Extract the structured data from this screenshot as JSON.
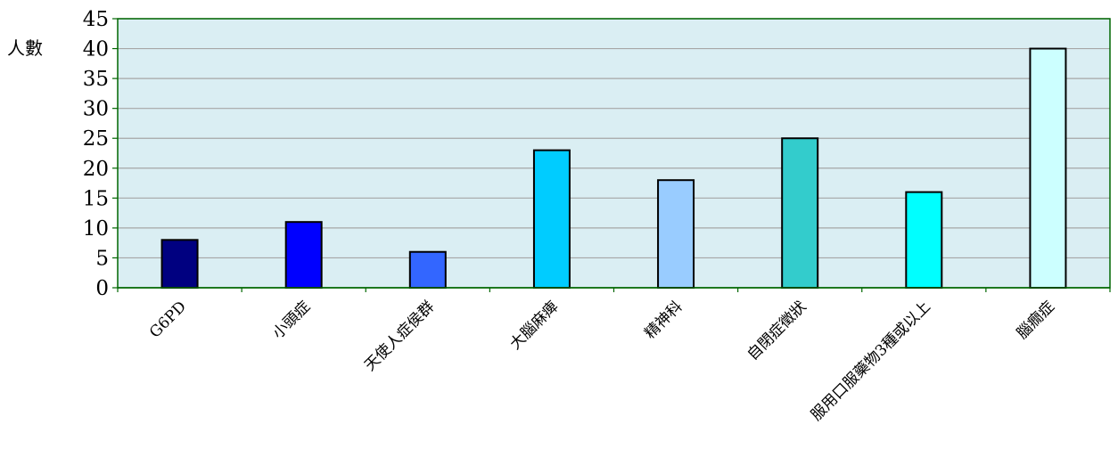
{
  "chart_data": {
    "type": "bar",
    "title": "",
    "xlabel": "",
    "ylabel": "人數",
    "ylim": [
      0,
      45
    ],
    "yticks": [
      0,
      5,
      10,
      15,
      20,
      25,
      30,
      35,
      40,
      45
    ],
    "grid": true,
    "legend": "none",
    "categories": [
      "G6PD",
      "小頭症",
      "天使人症侯群",
      "大腦麻痺",
      "精神科",
      "自閉症徵狀",
      "服用口服藥物3種或以上",
      "腦癇症"
    ],
    "values": [
      8,
      11,
      6,
      23,
      18,
      25,
      16,
      40
    ],
    "bar_colors": [
      "#000080",
      "#0000ff",
      "#3366ff",
      "#00ccff",
      "#99ccff",
      "#33cccc",
      "#00ffff",
      "#ccffff"
    ],
    "plot_background": "#daeef3",
    "axis_color": "#006600",
    "grid_color": "#a6a6a6"
  }
}
